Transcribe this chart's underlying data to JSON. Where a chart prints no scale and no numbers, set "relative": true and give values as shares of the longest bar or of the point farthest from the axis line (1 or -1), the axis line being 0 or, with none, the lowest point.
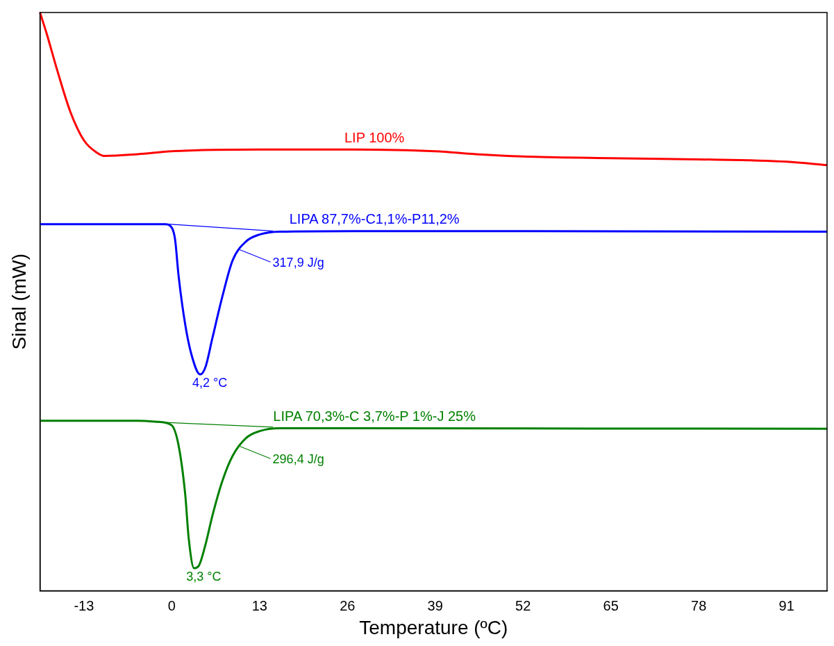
{
  "chart_data": {
    "type": "line",
    "xlabel": "Temperature (ºC)",
    "ylabel": "Sinal (mW)",
    "relative": true,
    "xlim": [
      -19.5,
      97
    ],
    "xticks": [
      -13,
      0,
      13,
      26,
      39,
      52,
      65,
      78,
      91
    ],
    "grid": false,
    "legend": false,
    "marker": "none",
    "line_style": "solid",
    "series": [
      {
        "name": "LIP 100%",
        "color": "#ff0000",
        "x": [
          -19.5,
          -18.5,
          -17,
          -15,
          -13,
          -11,
          -10,
          -5,
          0,
          13,
          26,
          39,
          45,
          52,
          65,
          78,
          91,
          97
        ],
        "values": [
          1.0,
          0.963,
          0.902,
          0.828,
          0.779,
          0.757,
          0.752,
          0.755,
          0.76,
          0.763,
          0.763,
          0.76,
          0.755,
          0.751,
          0.748,
          0.746,
          0.742,
          0.736
        ]
      },
      {
        "name": "LIPA 87,7%-C1,1%-P11,2%",
        "color": "#0000ff",
        "x": [
          -19.5,
          -1,
          0,
          0.5,
          1,
          2,
          3,
          4.2,
          5,
          6,
          7.5,
          9,
          11,
          13,
          16,
          30,
          97
        ],
        "values": [
          0.634,
          0.634,
          0.628,
          0.607,
          0.546,
          0.46,
          0.405,
          0.374,
          0.387,
          0.436,
          0.509,
          0.571,
          0.604,
          0.616,
          0.621,
          0.622,
          0.621
        ]
      },
      {
        "color": "#0000ff",
        "x": [
          -0.5,
          15
        ],
        "values": [
          0.634,
          0.622
        ]
      },
      {
        "name": "LIPA 70,3%-C 3,7%-P 1%-J 25%",
        "color": "#008000",
        "x": [
          -19.5,
          -5,
          -2,
          0,
          1,
          2,
          2.5,
          3.3,
          4,
          5,
          6,
          7.5,
          9,
          11,
          13,
          16,
          97
        ],
        "values": [
          0.294,
          0.294,
          0.292,
          0.286,
          0.252,
          0.166,
          0.092,
          0.039,
          0.043,
          0.08,
          0.129,
          0.19,
          0.233,
          0.264,
          0.276,
          0.281,
          0.28
        ]
      },
      {
        "color": "#008000",
        "x": [
          -3,
          15
        ],
        "values": [
          0.292,
          0.283
        ]
      }
    ],
    "annotations": [
      {
        "text": "317,9 J/g",
        "x": 10,
        "y": 0.59
      },
      {
        "text": "4,2 °C",
        "x": 4.2,
        "y": 0.374
      },
      {
        "text": "296,4 J/g",
        "x": 10,
        "y": 0.25
      },
      {
        "text": "3,3 °C",
        "x": 3.3,
        "y": 0.039
      }
    ]
  }
}
